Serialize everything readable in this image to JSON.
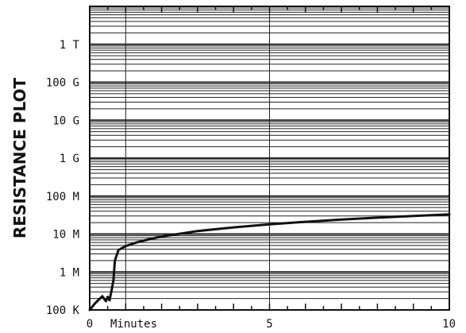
{
  "chart_data": {
    "type": "line",
    "title": "",
    "ylabel": "RESISTANCE PLOT",
    "xlabel": "Minutes",
    "x_scale": "linear",
    "y_scale": "log",
    "xlim": [
      0,
      10
    ],
    "ylim_ohms": [
      100000,
      10000000000000
    ],
    "x_ticks": [
      {
        "value": 0,
        "label": "0"
      },
      {
        "value": 5,
        "label": "5"
      },
      {
        "value": 10,
        "label": "10"
      }
    ],
    "y_ticks": [
      {
        "value": 100000,
        "label": "100 K"
      },
      {
        "value": 1000000,
        "label": "1 M"
      },
      {
        "value": 10000000,
        "label": "10 M"
      },
      {
        "value": 100000000,
        "label": "100 M"
      },
      {
        "value": 1000000000,
        "label": "1 G"
      },
      {
        "value": 10000000000,
        "label": "10 G"
      },
      {
        "value": 100000000000,
        "label": "100 G"
      },
      {
        "value": 1000000000000,
        "label": "1 T"
      }
    ],
    "grid": true,
    "series": [
      {
        "x": [
          0.0,
          0.15,
          0.35,
          0.45,
          0.5,
          0.55,
          0.6,
          0.66,
          0.7,
          0.8,
          1.0,
          1.3,
          1.7,
          2.0,
          3.0,
          4.0,
          5.0,
          6.0,
          7.0,
          8.0,
          9.0,
          10.0
        ],
        "y": [
          100000,
          150000,
          230000,
          170000,
          220000,
          180000,
          300000,
          600000,
          2000000,
          3800000,
          4800000,
          6000000,
          7500000,
          8600000,
          12000000,
          15000000,
          18000000,
          21000000,
          24000000,
          27000000,
          30000000,
          33000000
        ]
      }
    ],
    "colors": {
      "line": "#111111",
      "grid": "#222222",
      "background": "#ffffff"
    }
  }
}
